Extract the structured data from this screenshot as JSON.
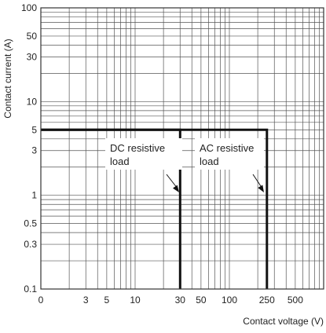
{
  "chart_data": {
    "type": "line",
    "xlabel": "Contact voltage (V)",
    "ylabel": "Contact current (A)",
    "x_scale": "log",
    "y_scale": "log",
    "xlim": [
      1,
      1000
    ],
    "ylim": [
      0.1,
      100
    ],
    "x_ticks": [
      "0",
      "3",
      "5",
      "10",
      "30",
      "50",
      "100",
      "250",
      "500"
    ],
    "y_ticks": [
      "0.1",
      "0.3",
      "0.5",
      "1",
      "3",
      "5",
      "10",
      "30",
      "50",
      "100"
    ],
    "grid": true,
    "series": [
      {
        "name": "DC resistive load",
        "x": [
          1,
          30,
          30
        ],
        "y": [
          5,
          5,
          0.1
        ]
      },
      {
        "name": "AC resistive load",
        "x": [
          1,
          250,
          250
        ],
        "y": [
          5,
          5,
          0.1
        ]
      }
    ],
    "annotations": [
      {
        "lines": [
          "DC resistive",
          "load"
        ],
        "target": "DC resistive load"
      },
      {
        "lines": [
          "AC resistive",
          "load"
        ],
        "target": "AC resistive load"
      }
    ]
  }
}
